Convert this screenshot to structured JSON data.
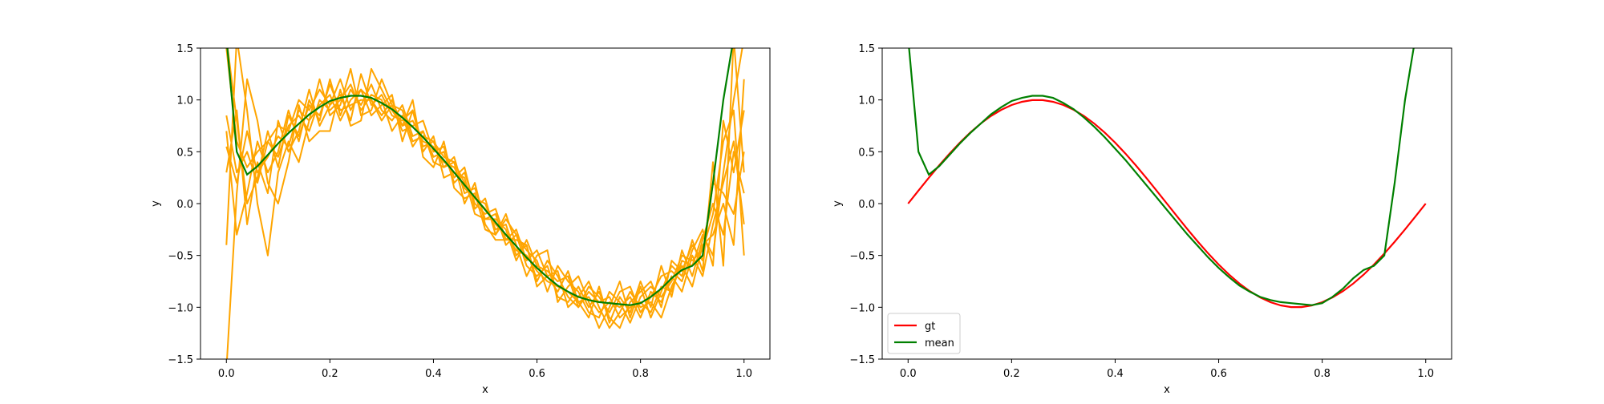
{
  "chart_data": [
    {
      "type": "line",
      "title": "",
      "xlabel": "x",
      "ylabel": "y",
      "xlim": [
        -0.05,
        1.05
      ],
      "ylim": [
        -1.5,
        1.5
      ],
      "xticks": [
        "0.0",
        "0.2",
        "0.4",
        "0.6",
        "0.8",
        "1.0"
      ],
      "xtick_values": [
        0.0,
        0.2,
        0.4,
        0.6,
        0.8,
        1.0
      ],
      "yticks": [
        "1.5",
        "1.0",
        "0.5",
        "0.0",
        "−0.5",
        "−1.0",
        "−1.5"
      ],
      "ytick_values": [
        1.5,
        1.0,
        0.5,
        0.0,
        -0.5,
        -1.0,
        -1.5
      ],
      "grid": false,
      "legend": null,
      "sample_color": "#ffa500",
      "mean_color": "#008000",
      "x": [
        0.0,
        0.02,
        0.04,
        0.06,
        0.08,
        0.1,
        0.12,
        0.14,
        0.16,
        0.18,
        0.2,
        0.22,
        0.24,
        0.26,
        0.28,
        0.3,
        0.32,
        0.34,
        0.36,
        0.38,
        0.4,
        0.42,
        0.44,
        0.46,
        0.48,
        0.5,
        0.52,
        0.54,
        0.56,
        0.58,
        0.6,
        0.62,
        0.64,
        0.66,
        0.68,
        0.7,
        0.72,
        0.74,
        0.76,
        0.78,
        0.8,
        0.82,
        0.84,
        0.86,
        0.88,
        0.9,
        0.92,
        0.94,
        0.96,
        0.98,
        1.0
      ],
      "mean": [
        1.6,
        0.5,
        0.28,
        0.36,
        0.47,
        0.58,
        0.68,
        0.77,
        0.86,
        0.93,
        0.99,
        1.02,
        1.04,
        1.04,
        1.02,
        0.97,
        0.91,
        0.83,
        0.74,
        0.64,
        0.53,
        0.42,
        0.3,
        0.18,
        0.06,
        -0.06,
        -0.18,
        -0.3,
        -0.41,
        -0.52,
        -0.62,
        -0.71,
        -0.79,
        -0.85,
        -0.9,
        -0.93,
        -0.95,
        -0.96,
        -0.97,
        -0.98,
        -0.96,
        -0.9,
        -0.82,
        -0.72,
        -0.64,
        -0.6,
        -0.5,
        0.2,
        1.0,
        1.6,
        1.6
      ],
      "samples": [
        [
          0.85,
          0.3,
          0.5,
          0.2,
          0.6,
          0.75,
          0.7,
          1.0,
          0.9,
          1.1,
          0.95,
          1.2,
          0.9,
          1.1,
          1.0,
          0.85,
          1.0,
          0.75,
          0.8,
          0.6,
          0.55,
          0.4,
          0.35,
          0.15,
          0.05,
          -0.05,
          -0.2,
          -0.3,
          -0.45,
          -0.5,
          -0.65,
          -0.75,
          -0.8,
          -0.85,
          -0.95,
          -0.9,
          -1.05,
          -0.95,
          -1.0,
          -0.9,
          -1.1,
          -0.85,
          -0.95,
          -0.7,
          -0.85,
          -0.5,
          -0.7,
          -0.2,
          0.2,
          0.6,
          -0.2
        ],
        [
          0.7,
          -0.3,
          0.1,
          0.6,
          0.3,
          0.5,
          0.9,
          0.6,
          1.0,
          0.8,
          1.2,
          0.85,
          1.1,
          0.95,
          1.15,
          0.9,
          0.8,
          0.95,
          0.65,
          0.7,
          0.45,
          0.5,
          0.2,
          0.3,
          0.0,
          -0.1,
          -0.05,
          -0.35,
          -0.25,
          -0.55,
          -0.45,
          -0.7,
          -0.85,
          -0.65,
          -0.95,
          -1.1,
          -0.8,
          -1.15,
          -0.9,
          -1.05,
          -0.75,
          -1.0,
          -0.6,
          -0.9,
          -0.45,
          -0.7,
          -0.35,
          0.0,
          -0.3,
          0.5,
          0.1
        ],
        [
          0.3,
          0.9,
          -0.2,
          0.4,
          0.1,
          0.8,
          0.5,
          0.7,
          1.1,
          0.75,
          0.95,
          1.05,
          0.8,
          1.25,
          0.95,
          1.05,
          0.85,
          0.8,
          0.9,
          0.55,
          0.6,
          0.35,
          0.45,
          0.1,
          0.15,
          -0.15,
          -0.1,
          -0.4,
          -0.3,
          -0.6,
          -0.7,
          -0.6,
          -0.9,
          -0.95,
          -0.8,
          -1.0,
          -0.85,
          -1.1,
          -1.2,
          -0.95,
          -0.85,
          -0.75,
          -1.0,
          -0.55,
          -0.65,
          -0.4,
          -0.55,
          0.2,
          0.1,
          -0.1,
          0.5
        ],
        [
          1.5,
          0.6,
          0.35,
          0.5,
          0.6,
          0.45,
          0.75,
          0.85,
          0.7,
          1.0,
          0.9,
          1.0,
          1.15,
          0.9,
          1.05,
          1.0,
          0.7,
          0.85,
          0.55,
          0.7,
          0.4,
          0.35,
          0.4,
          0.2,
          0.05,
          0.0,
          -0.25,
          -0.2,
          -0.5,
          -0.4,
          -0.75,
          -0.55,
          -0.7,
          -0.9,
          -1.0,
          -0.85,
          -0.95,
          -0.9,
          -1.1,
          -1.0,
          -0.95,
          -1.05,
          -0.8,
          -0.85,
          -0.55,
          -0.6,
          -0.3,
          -0.5,
          0.3,
          1.0,
          1.6
        ],
        [
          -0.4,
          1.6,
          0.9,
          0.0,
          -0.5,
          0.3,
          0.6,
          0.4,
          0.8,
          1.2,
          0.85,
          0.95,
          1.3,
          0.85,
          0.9,
          1.2,
          0.95,
          0.7,
          0.75,
          0.8,
          0.5,
          0.55,
          0.25,
          0.35,
          -0.05,
          0.05,
          -0.3,
          -0.15,
          -0.3,
          -0.45,
          -0.55,
          -0.85,
          -0.6,
          -0.75,
          -0.85,
          -1.05,
          -1.1,
          -0.85,
          -0.95,
          -1.15,
          -0.9,
          -0.8,
          -0.9,
          -0.75,
          -0.5,
          -0.55,
          -0.45,
          -0.1,
          0.6,
          0.9,
          -0.5
        ],
        [
          0.55,
          0.2,
          0.7,
          0.3,
          0.45,
          0.65,
          0.55,
          0.9,
          0.8,
          0.95,
          1.05,
          0.8,
          1.0,
          1.1,
          0.85,
          0.95,
          1.05,
          0.6,
          0.9,
          0.5,
          0.65,
          0.25,
          0.3,
          0.25,
          -0.1,
          -0.15,
          -0.15,
          -0.25,
          -0.55,
          -0.35,
          -0.6,
          -0.65,
          -0.75,
          -0.7,
          -1.0,
          -0.8,
          -0.9,
          -1.05,
          -0.85,
          -0.8,
          -1.05,
          -0.9,
          -0.7,
          -0.65,
          -0.75,
          -0.45,
          -0.25,
          -0.6,
          0.8,
          0.3,
          0.9
        ],
        [
          -1.6,
          0.1,
          1.2,
          0.8,
          0.2,
          0.0,
          0.4,
          0.95,
          0.6,
          0.7,
          0.7,
          1.1,
          0.75,
          0.8,
          1.3,
          1.1,
          0.9,
          0.75,
          1.0,
          0.45,
          0.35,
          0.6,
          0.15,
          0.05,
          0.1,
          -0.25,
          -0.3,
          -0.1,
          -0.4,
          -0.7,
          -0.5,
          -0.45,
          -0.95,
          -0.8,
          -0.7,
          -0.95,
          -1.2,
          -1.0,
          -0.75,
          -1.1,
          -0.8,
          -1.1,
          -0.85,
          -0.6,
          -0.7,
          -0.35,
          -0.65,
          0.4,
          -0.6,
          1.6,
          0.3
        ],
        [
          1.6,
          0.8,
          0.0,
          0.25,
          0.7,
          0.35,
          0.85,
          0.65,
          0.95,
          0.85,
          1.15,
          0.9,
          0.95,
          1.0,
          1.0,
          0.8,
          0.95,
          0.9,
          0.6,
          0.65,
          0.6,
          0.45,
          0.4,
          0.0,
          0.2,
          -0.2,
          -0.35,
          -0.35,
          -0.35,
          -0.4,
          -0.8,
          -0.7,
          -0.65,
          -1.0,
          -0.9,
          -0.75,
          -1.0,
          -1.2,
          -1.05,
          -0.85,
          -1.0,
          -0.95,
          -1.1,
          -0.8,
          -0.6,
          -0.8,
          -0.4,
          -0.3,
          0.0,
          -0.4,
          1.2
        ]
      ]
    },
    {
      "type": "line",
      "title": "",
      "xlabel": "x",
      "ylabel": "y",
      "xlim": [
        -0.05,
        1.05
      ],
      "ylim": [
        -1.5,
        1.5
      ],
      "xticks": [
        "0.0",
        "0.2",
        "0.4",
        "0.6",
        "0.8",
        "1.0"
      ],
      "xtick_values": [
        0.0,
        0.2,
        0.4,
        0.6,
        0.8,
        1.0
      ],
      "yticks": [
        "1.5",
        "1.0",
        "0.5",
        "0.0",
        "−0.5",
        "−1.0",
        "−1.5"
      ],
      "ytick_values": [
        1.5,
        1.0,
        0.5,
        0.0,
        -0.5,
        -1.0,
        -1.5
      ],
      "grid": false,
      "legend": "lower-left",
      "x": [
        0.0,
        0.02,
        0.04,
        0.06,
        0.08,
        0.1,
        0.12,
        0.14,
        0.16,
        0.18,
        0.2,
        0.22,
        0.24,
        0.26,
        0.28,
        0.3,
        0.32,
        0.34,
        0.36,
        0.38,
        0.4,
        0.42,
        0.44,
        0.46,
        0.48,
        0.5,
        0.52,
        0.54,
        0.56,
        0.58,
        0.6,
        0.62,
        0.64,
        0.66,
        0.68,
        0.7,
        0.72,
        0.74,
        0.76,
        0.78,
        0.8,
        0.82,
        0.84,
        0.86,
        0.88,
        0.9,
        0.92,
        0.94,
        0.96,
        0.98,
        1.0
      ],
      "series": [
        {
          "name": "gt",
          "color": "#ff0000",
          "values": [
            0.0,
            0.125,
            0.249,
            0.368,
            0.482,
            0.588,
            0.685,
            0.771,
            0.844,
            0.905,
            0.951,
            0.982,
            0.998,
            0.998,
            0.982,
            0.951,
            0.905,
            0.844,
            0.771,
            0.685,
            0.588,
            0.482,
            0.368,
            0.249,
            0.125,
            0.0,
            -0.125,
            -0.249,
            -0.368,
            -0.482,
            -0.588,
            -0.685,
            -0.771,
            -0.844,
            -0.905,
            -0.951,
            -0.982,
            -0.998,
            -0.998,
            -0.982,
            -0.951,
            -0.905,
            -0.844,
            -0.771,
            -0.685,
            -0.588,
            -0.482,
            -0.368,
            -0.249,
            -0.125,
            0.0
          ]
        },
        {
          "name": "mean",
          "color": "#008000",
          "values": [
            1.6,
            0.5,
            0.28,
            0.36,
            0.47,
            0.58,
            0.68,
            0.77,
            0.86,
            0.93,
            0.99,
            1.02,
            1.04,
            1.04,
            1.02,
            0.97,
            0.91,
            0.83,
            0.74,
            0.64,
            0.53,
            0.42,
            0.3,
            0.18,
            0.06,
            -0.06,
            -0.18,
            -0.3,
            -0.41,
            -0.52,
            -0.62,
            -0.71,
            -0.79,
            -0.85,
            -0.9,
            -0.93,
            -0.95,
            -0.96,
            -0.97,
            -0.98,
            -0.96,
            -0.9,
            -0.82,
            -0.72,
            -0.64,
            -0.6,
            -0.5,
            0.2,
            1.0,
            1.6,
            1.6
          ]
        }
      ]
    }
  ]
}
